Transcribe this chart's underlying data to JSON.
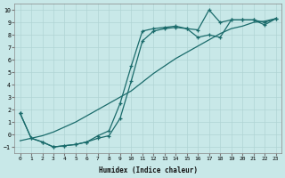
{
  "xlabel": "Humidex (Indice chaleur)",
  "background_color": "#c8e8e8",
  "grid_color": "#b0d4d4",
  "line_color": "#1a6b6b",
  "xlim": [
    -0.5,
    23.5
  ],
  "ylim": [
    -1.5,
    10.5
  ],
  "xticks": [
    0,
    1,
    2,
    3,
    4,
    5,
    6,
    7,
    8,
    9,
    10,
    11,
    12,
    13,
    14,
    15,
    16,
    17,
    18,
    19,
    20,
    21,
    22,
    23
  ],
  "yticks": [
    -1,
    0,
    1,
    2,
    3,
    4,
    5,
    6,
    7,
    8,
    9,
    10
  ],
  "line1_x": [
    0,
    1,
    2,
    3,
    4,
    5,
    6,
    7,
    8,
    9,
    10,
    11,
    12,
    13,
    14,
    15,
    16,
    17,
    18,
    19,
    20,
    21,
    22,
    23
  ],
  "line1_y": [
    1.7,
    -0.3,
    -0.6,
    -1.0,
    -0.9,
    -0.8,
    -0.6,
    -0.3,
    -0.1,
    1.3,
    4.3,
    7.5,
    8.3,
    8.5,
    8.6,
    8.5,
    8.4,
    10.0,
    9.0,
    9.2,
    9.2,
    9.2,
    8.8,
    9.3
  ],
  "line2_x": [
    0,
    1,
    2,
    3,
    4,
    5,
    6,
    7,
    8,
    9,
    10,
    11,
    12,
    13,
    14,
    15,
    16,
    17,
    18,
    19,
    20,
    21,
    22,
    23
  ],
  "line2_y": [
    1.7,
    -0.3,
    -0.6,
    -1.0,
    -0.9,
    -0.8,
    -0.6,
    -0.1,
    0.3,
    2.5,
    5.5,
    8.3,
    8.5,
    8.6,
    8.7,
    8.5,
    7.8,
    8.0,
    7.8,
    9.2,
    9.2,
    9.2,
    9.0,
    9.3
  ],
  "line3_x": [
    0,
    1,
    2,
    3,
    4,
    5,
    6,
    7,
    8,
    9,
    10,
    11,
    12,
    13,
    14,
    15,
    16,
    17,
    18,
    19,
    20,
    21,
    22,
    23
  ],
  "line3_y": [
    -0.5,
    -0.3,
    -0.1,
    0.2,
    0.6,
    1.0,
    1.5,
    2.0,
    2.5,
    3.0,
    3.5,
    4.2,
    4.9,
    5.5,
    6.1,
    6.6,
    7.1,
    7.6,
    8.1,
    8.5,
    8.7,
    9.0,
    9.1,
    9.3
  ]
}
